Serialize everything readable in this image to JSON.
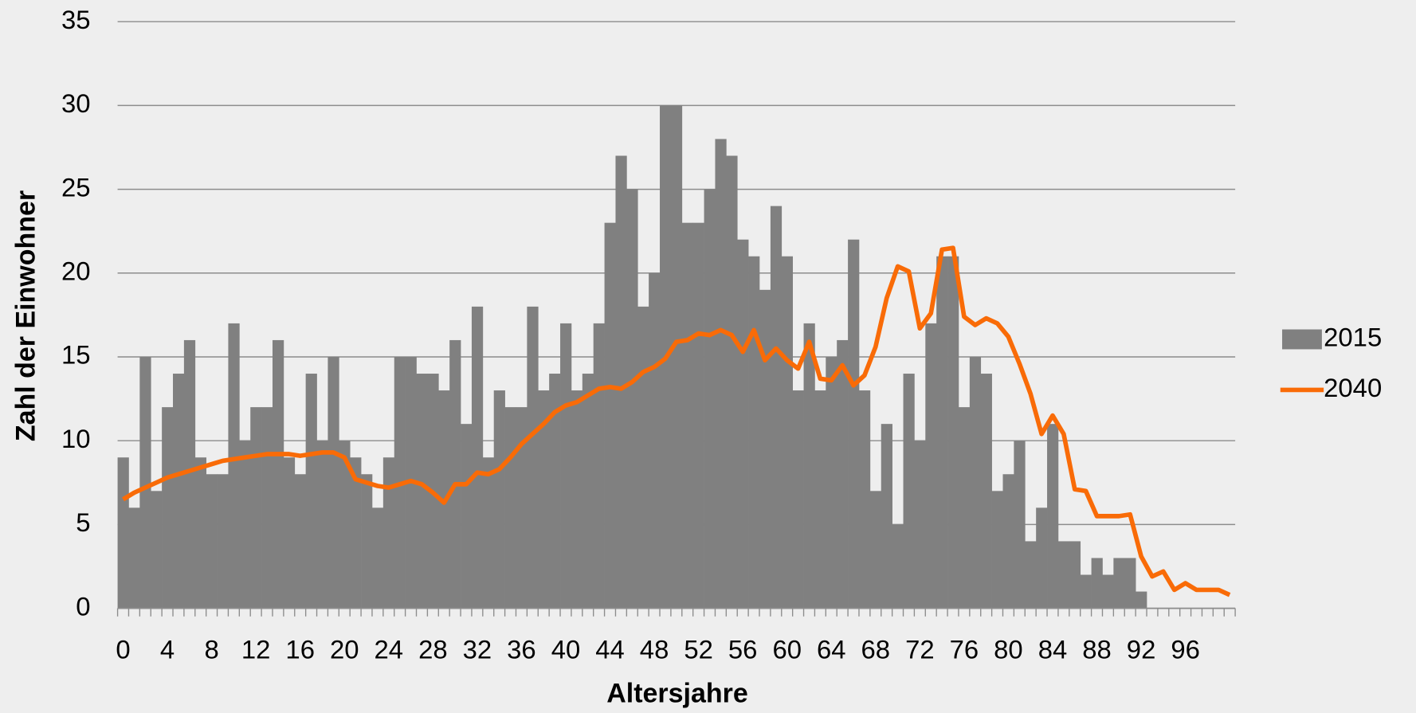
{
  "chart_data": {
    "type": "bar",
    "x_label": "Altersjahre",
    "y_label": "Zahl der Einwohner",
    "categories": [
      "0",
      null,
      null,
      null,
      "4",
      null,
      null,
      null,
      "8",
      null,
      null,
      null,
      "12",
      null,
      null,
      null,
      "16",
      null,
      null,
      null,
      "20",
      null,
      null,
      null,
      "24",
      null,
      null,
      null,
      "28",
      null,
      null,
      null,
      "32",
      null,
      null,
      null,
      "36",
      null,
      null,
      null,
      "40",
      null,
      null,
      null,
      "44",
      null,
      null,
      null,
      "48",
      null,
      null,
      null,
      "52",
      null,
      null,
      null,
      "56",
      null,
      null,
      null,
      "60",
      null,
      null,
      null,
      "64",
      null,
      null,
      null,
      "68",
      null,
      null,
      null,
      "72",
      null,
      null,
      null,
      "76",
      null,
      null,
      null,
      "80",
      null,
      null,
      null,
      "84",
      null,
      null,
      null,
      "88",
      null,
      null,
      null,
      "92",
      null,
      null,
      null,
      "96",
      null,
      null,
      null,
      null
    ],
    "series": [
      {
        "name": "2015",
        "type": "bar",
        "color": "#808080",
        "values": [
          9,
          6,
          15,
          7,
          12,
          14,
          16,
          9,
          8,
          8,
          17,
          10,
          12,
          12,
          16,
          9,
          8,
          14,
          10,
          15,
          10,
          9,
          8,
          6,
          9,
          15,
          15,
          14,
          14,
          13,
          16,
          11,
          18,
          9,
          13,
          12,
          12,
          18,
          13,
          14,
          17,
          13,
          14,
          17,
          23,
          27,
          25,
          18,
          20,
          30,
          30,
          23,
          23,
          25,
          28,
          27,
          22,
          21,
          19,
          24,
          21,
          13,
          17,
          13,
          15,
          16,
          22,
          13,
          7,
          11,
          5,
          14,
          10,
          17,
          21,
          21,
          12,
          15,
          14,
          7,
          8,
          10,
          4,
          6,
          11,
          4,
          4,
          2,
          3,
          2,
          3,
          3,
          1,
          0,
          0,
          0,
          0,
          0,
          0,
          0,
          0
        ]
      },
      {
        "name": "2040",
        "type": "line",
        "color": "#f96b07",
        "values": [
          6.5,
          6.9,
          7.2,
          7.5,
          7.8,
          8.0,
          8.2,
          8.4,
          8.6,
          8.8,
          8.9,
          9.0,
          9.1,
          9.2,
          9.2,
          9.2,
          9.1,
          9.2,
          9.3,
          9.3,
          9.0,
          7.7,
          7.5,
          7.3,
          7.2,
          7.4,
          7.6,
          7.4,
          6.9,
          6.3,
          7.4,
          7.4,
          8.1,
          8.0,
          8.3,
          9.0,
          9.8,
          10.4,
          11.0,
          11.7,
          12.1,
          12.3,
          12.7,
          13.1,
          13.2,
          13.1,
          13.5,
          14.1,
          14.4,
          14.9,
          15.9,
          16.0,
          16.4,
          16.3,
          16.6,
          16.3,
          15.3,
          16.6,
          14.8,
          15.5,
          14.8,
          14.3,
          15.9,
          13.7,
          13.6,
          14.5,
          13.3,
          13.9,
          15.6,
          18.5,
          20.4,
          20.1,
          16.7,
          17.6,
          21.4,
          21.5,
          17.4,
          16.9,
          17.3,
          17.0,
          16.2,
          14.6,
          12.8,
          10.4,
          11.5,
          10.4,
          7.1,
          7.0,
          5.5,
          5.5,
          5.5,
          5.6,
          3.1,
          1.9,
          2.2,
          1.1,
          1.5,
          1.1,
          1.1,
          1.1,
          0.8
        ]
      }
    ],
    "ylim": [
      0,
      35
    ],
    "yticks": [
      0,
      5,
      10,
      15,
      20,
      25,
      30,
      35
    ],
    "grid": true,
    "legend": "right"
  }
}
